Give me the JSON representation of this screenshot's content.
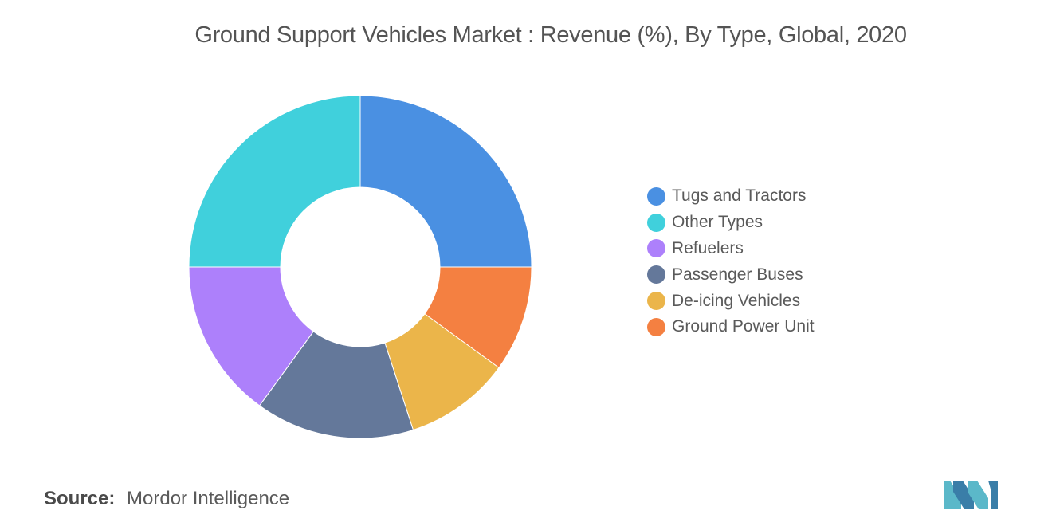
{
  "chart_data": {
    "type": "pie",
    "donut": true,
    "title": "Ground Support Vehicles Market : Revenue (%), By Type, Global, 2020",
    "categories": [
      "Tugs and Tractors",
      "Ground Power Unit",
      "De-icing Vehicles",
      "Passenger Buses",
      "Refuelers",
      "Other Types"
    ],
    "values": [
      25,
      10,
      10,
      15,
      15,
      25
    ],
    "colors": [
      "#4a90e2",
      "#f48041",
      "#ebb54a",
      "#64789a",
      "#ad80fb",
      "#40d0dc"
    ],
    "legend_position": "right",
    "legend_order": [
      0,
      5,
      4,
      3,
      2,
      1
    ]
  },
  "source": {
    "label": "Source:",
    "value": "Mordor Intelligence"
  },
  "logo": {
    "icon": "mordor-intelligence-logo",
    "colors": [
      "#5bb8c9",
      "#3a7ea8"
    ]
  }
}
